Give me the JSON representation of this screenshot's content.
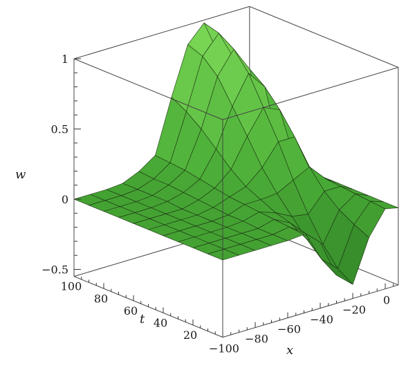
{
  "chart_data": {
    "type": "surface3d",
    "title": "",
    "zlabel": "w",
    "xlabel": "x",
    "ylabel": "t",
    "zlim": [
      -0.55,
      1.0
    ],
    "xlim": [
      -100,
      8
    ],
    "tlim": [
      0,
      100
    ],
    "z_ticks": [
      {
        "value": 1,
        "label": "1"
      },
      {
        "value": 0.5,
        "label": "0.5"
      },
      {
        "value": 0,
        "label": "0"
      },
      {
        "value": -0.5,
        "label": "−0.5"
      }
    ],
    "x_ticks": [
      {
        "value": -100,
        "label": "−100"
      },
      {
        "value": -80,
        "label": "−80"
      },
      {
        "value": -60,
        "label": "−60"
      },
      {
        "value": -40,
        "label": "−40"
      },
      {
        "value": -20,
        "label": "−20"
      },
      {
        "value": 0,
        "label": "0"
      }
    ],
    "t_ticks": [
      {
        "value": 100,
        "label": "100"
      },
      {
        "value": 80,
        "label": "80"
      },
      {
        "value": 60,
        "label": "60"
      },
      {
        "value": 40,
        "label": "40"
      },
      {
        "value": 20,
        "label": "20"
      }
    ],
    "surface": {
      "description_of_shape": "Localized wave packet: near zero for x below -50; oscillations growing with t, peaks near 1 at large t around x in [-45,-15], trough near -0.45 at small t",
      "x_samples": [
        -100,
        -90,
        -80,
        -70,
        -60,
        -50,
        -40,
        -30,
        -20,
        -10,
        0,
        8
      ],
      "t_samples": [
        0,
        10,
        20,
        30,
        40,
        50,
        60,
        70,
        80,
        90,
        100
      ],
      "z_values": [
        [
          0,
          0,
          0,
          0,
          0,
          0.01,
          -0.08,
          -0.35,
          -0.45,
          -0.15,
          0.02,
          0
        ],
        [
          0,
          0,
          0,
          0,
          0,
          0.02,
          -0.06,
          -0.28,
          -0.38,
          -0.1,
          0.03,
          0
        ],
        [
          0,
          0,
          0,
          0,
          0,
          0.03,
          -0.03,
          -0.18,
          -0.25,
          -0.04,
          0.04,
          0
        ],
        [
          0,
          0,
          0,
          0,
          0.01,
          0.04,
          0.0,
          -0.06,
          -0.08,
          0.05,
          0.05,
          0
        ],
        [
          0,
          0,
          0,
          0,
          0.01,
          0.05,
          0.05,
          0.06,
          0.12,
          0.18,
          0.06,
          0
        ],
        [
          0,
          0,
          0,
          0,
          0.02,
          0.06,
          0.1,
          0.2,
          0.35,
          0.35,
          0.07,
          0
        ],
        [
          0,
          0,
          0,
          0,
          0.03,
          0.08,
          0.18,
          0.38,
          0.55,
          0.5,
          0.08,
          0
        ],
        [
          0,
          0,
          0,
          0.01,
          0.04,
          0.1,
          0.28,
          0.55,
          0.75,
          0.62,
          0.09,
          0
        ],
        [
          0,
          0,
          0,
          0.01,
          0.05,
          0.12,
          0.38,
          0.72,
          0.88,
          0.7,
          0.1,
          0
        ],
        [
          0,
          0,
          0,
          0.01,
          0.05,
          0.13,
          0.46,
          0.82,
          0.95,
          0.72,
          0.1,
          0
        ],
        [
          0,
          0,
          0,
          0.01,
          0.06,
          0.14,
          0.52,
          0.86,
          0.98,
          0.7,
          0.1,
          0
        ]
      ]
    },
    "colors": {
      "surface_light": "#7ed957",
      "surface_mid": "#4fb23a",
      "surface_dark": "#2a7a22",
      "mesh": "#1a2e10",
      "box": "#444444"
    }
  }
}
